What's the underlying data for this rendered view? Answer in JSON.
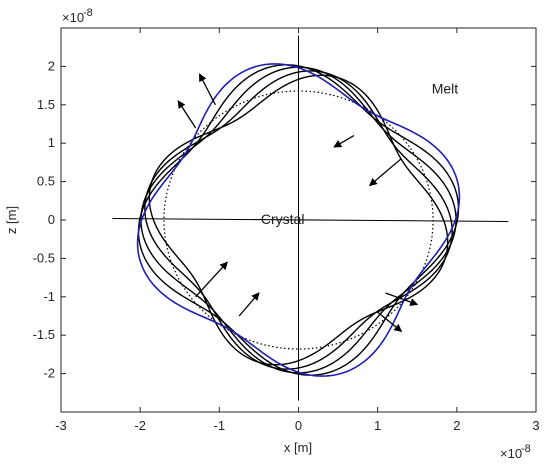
{
  "chart_data": {
    "type": "line",
    "xlabel": "x [m]",
    "ylabel": "z [m]",
    "x_exponent_label": "×10",
    "x_exponent_power": "-8",
    "y_exponent_label": "×10",
    "y_exponent_power": "-8",
    "xlim": [
      -3,
      3
    ],
    "ylim": [
      -2.5,
      2.5
    ],
    "xticks": [
      -3,
      -2,
      -1,
      0,
      1,
      2,
      3
    ],
    "xtick_labels": [
      "-3",
      "-2",
      "-1",
      "0",
      "1",
      "2",
      "3"
    ],
    "yticks": [
      -2,
      -1.5,
      -1,
      -0.5,
      0,
      0.5,
      1,
      1.5,
      2
    ],
    "ytick_labels": [
      "-2",
      "-1.5",
      "-1",
      "-0.5",
      "0",
      "0.5",
      "1",
      "1.5",
      "2"
    ],
    "grid": false,
    "annotations": [
      {
        "text": "Melt",
        "x": 1.85,
        "y": 1.65
      },
      {
        "text": "Crystal",
        "x": -0.2,
        "y": -0.05
      }
    ],
    "reference_lines": {
      "horizontal": {
        "x": [
          -2.35,
          2.65
        ],
        "y": [
          0.02,
          -0.02
        ]
      },
      "vertical": {
        "x": [
          0,
          0
        ],
        "y": [
          -2.35,
          2.4
        ]
      }
    },
    "dotted_circle": {
      "center": [
        0,
        0
      ],
      "rx": 1.7,
      "ry": 1.68
    },
    "contour_family": {
      "description_free": true,
      "radius_base": [
        1.72,
        1.75,
        1.79,
        1.83,
        1.87
      ],
      "fourfold_amplitude": [
        0.2,
        0.2,
        0.2,
        0.2,
        0.2
      ],
      "rotation_deg": [
        -14,
        -7,
        0,
        7,
        14
      ],
      "colors": [
        "#000000",
        "#000000",
        "#000000",
        "#000000",
        "#1f1fb4"
      ]
    },
    "arrows": [
      {
        "x0": -1.3,
        "y0": 1.2,
        "x1": -1.52,
        "y1": 1.55
      },
      {
        "x0": -1.05,
        "y0": 1.5,
        "x1": -1.25,
        "y1": 1.9
      },
      {
        "x0": 0.7,
        "y0": 1.1,
        "x1": 0.45,
        "y1": 0.95
      },
      {
        "x0": 1.3,
        "y0": 0.8,
        "x1": 0.9,
        "y1": 0.45
      },
      {
        "x0": -1.3,
        "y0": -1.0,
        "x1": -0.9,
        "y1": -0.55
      },
      {
        "x0": -0.75,
        "y0": -1.25,
        "x1": -0.5,
        "y1": -0.95
      },
      {
        "x0": 1.1,
        "y0": -0.95,
        "x1": 1.5,
        "y1": -1.1
      },
      {
        "x0": 1.0,
        "y0": -1.2,
        "x1": 1.3,
        "y1": -1.45
      }
    ],
    "colors": {
      "axes": "#262626",
      "contour": "#000000",
      "outer_contour": "#1f1fb4",
      "background": "#ffffff"
    }
  }
}
